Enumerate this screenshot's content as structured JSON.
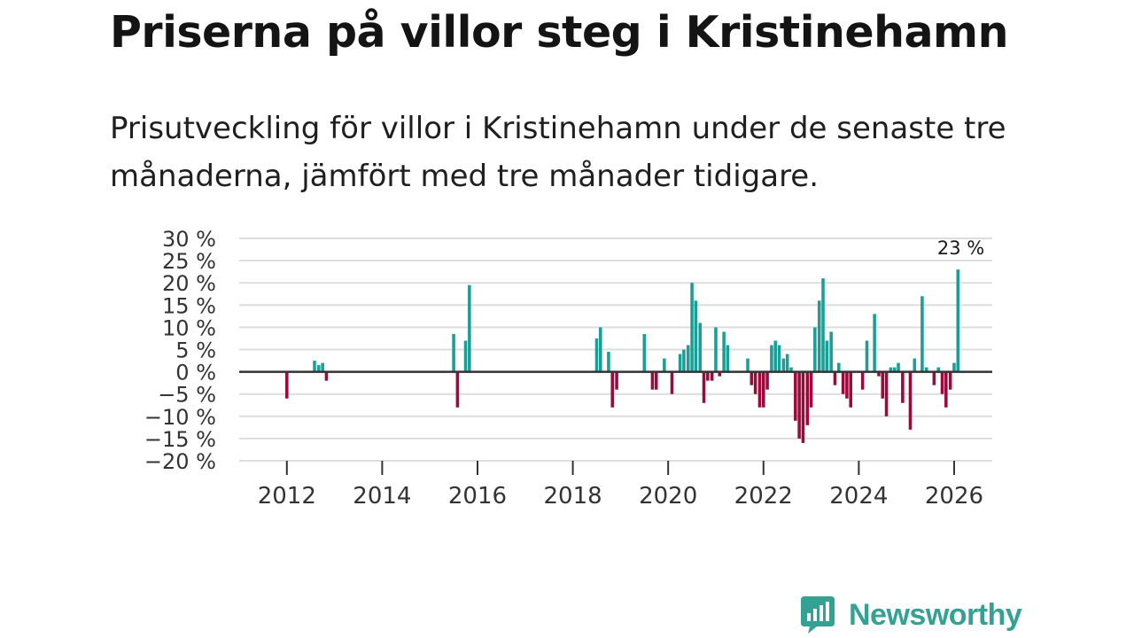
{
  "title": "Priserna på villor steg i Kristinehamn",
  "subtitle": "Prisutveckling för villor i Kristinehamn under de senaste tre månaderna, jämfört med tre månader tidigare.",
  "brand": {
    "name": "Newsworthy",
    "logo_icon": "bar-chart-speech-bubble-icon",
    "color": "#35a193"
  },
  "colors": {
    "positive": "#1a9e96",
    "negative": "#9c0a3c",
    "grid": "#dddddd",
    "zero_line": "#333333"
  },
  "chart_data": {
    "type": "bar",
    "title": "Priserna på villor steg i Kristinehamn",
    "xlabel": "",
    "ylabel": "",
    "ylim": [
      -20,
      30
    ],
    "xlim": [
      2011.0,
      2026.8
    ],
    "y_ticks": [
      {
        "value": 30,
        "label": "30 %"
      },
      {
        "value": 25,
        "label": "25 %"
      },
      {
        "value": 20,
        "label": "20 %"
      },
      {
        "value": 15,
        "label": "15 %"
      },
      {
        "value": 10,
        "label": "10 %"
      },
      {
        "value": 5,
        "label": "5 %"
      },
      {
        "value": 0,
        "label": "0 %"
      },
      {
        "value": -5,
        "label": "−5 %"
      },
      {
        "value": -10,
        "label": "−10 %"
      },
      {
        "value": -15,
        "label": "−15 %"
      },
      {
        "value": -20,
        "label": "−20 %"
      }
    ],
    "x_ticks": [
      {
        "value": 2012,
        "label": "2012"
      },
      {
        "value": 2014,
        "label": "2014"
      },
      {
        "value": 2016,
        "label": "2016"
      },
      {
        "value": 2018,
        "label": "2018"
      },
      {
        "value": 2020,
        "label": "2020"
      },
      {
        "value": 2022,
        "label": "2022"
      },
      {
        "value": 2024,
        "label": "2024"
      },
      {
        "value": 2026,
        "label": "2026"
      }
    ],
    "annotation": {
      "x": 2026.08,
      "value": 23,
      "label": "23 %"
    },
    "bar_width_years": 0.066,
    "series": [
      {
        "name": "Prisutveckling",
        "points": [
          {
            "x": 2012.0,
            "y": -6
          },
          {
            "x": 2012.58,
            "y": 2.5
          },
          {
            "x": 2012.67,
            "y": 1.5
          },
          {
            "x": 2012.75,
            "y": 2
          },
          {
            "x": 2012.83,
            "y": -2
          },
          {
            "x": 2015.5,
            "y": 8.5
          },
          {
            "x": 2015.58,
            "y": -8
          },
          {
            "x": 2015.75,
            "y": 7
          },
          {
            "x": 2015.83,
            "y": 19.5
          },
          {
            "x": 2018.5,
            "y": 7.5
          },
          {
            "x": 2018.58,
            "y": 10
          },
          {
            "x": 2018.75,
            "y": 4.5
          },
          {
            "x": 2018.83,
            "y": -8
          },
          {
            "x": 2018.92,
            "y": -4
          },
          {
            "x": 2019.5,
            "y": 8.5
          },
          {
            "x": 2019.67,
            "y": -4
          },
          {
            "x": 2019.75,
            "y": -4
          },
          {
            "x": 2019.92,
            "y": 3
          },
          {
            "x": 2020.08,
            "y": -5
          },
          {
            "x": 2020.25,
            "y": 4
          },
          {
            "x": 2020.33,
            "y": 5
          },
          {
            "x": 2020.42,
            "y": 6
          },
          {
            "x": 2020.5,
            "y": 20
          },
          {
            "x": 2020.58,
            "y": 16
          },
          {
            "x": 2020.67,
            "y": 11
          },
          {
            "x": 2020.75,
            "y": -7
          },
          {
            "x": 2020.83,
            "y": -2
          },
          {
            "x": 2020.92,
            "y": -2
          },
          {
            "x": 2021.0,
            "y": 10
          },
          {
            "x": 2021.08,
            "y": -1
          },
          {
            "x": 2021.17,
            "y": 9
          },
          {
            "x": 2021.25,
            "y": 6
          },
          {
            "x": 2021.67,
            "y": 3
          },
          {
            "x": 2021.75,
            "y": -3
          },
          {
            "x": 2021.83,
            "y": -5
          },
          {
            "x": 2021.92,
            "y": -8
          },
          {
            "x": 2022.0,
            "y": -8
          },
          {
            "x": 2022.08,
            "y": -4
          },
          {
            "x": 2022.17,
            "y": 6
          },
          {
            "x": 2022.25,
            "y": 7
          },
          {
            "x": 2022.33,
            "y": 6
          },
          {
            "x": 2022.42,
            "y": 3
          },
          {
            "x": 2022.5,
            "y": 4
          },
          {
            "x": 2022.58,
            "y": 1
          },
          {
            "x": 2022.67,
            "y": -11
          },
          {
            "x": 2022.75,
            "y": -15
          },
          {
            "x": 2022.83,
            "y": -16
          },
          {
            "x": 2022.92,
            "y": -12
          },
          {
            "x": 2023.0,
            "y": -8
          },
          {
            "x": 2023.08,
            "y": 10
          },
          {
            "x": 2023.17,
            "y": 16
          },
          {
            "x": 2023.25,
            "y": 21
          },
          {
            "x": 2023.33,
            "y": 7
          },
          {
            "x": 2023.42,
            "y": 9
          },
          {
            "x": 2023.5,
            "y": -3
          },
          {
            "x": 2023.58,
            "y": 2
          },
          {
            "x": 2023.67,
            "y": -5
          },
          {
            "x": 2023.75,
            "y": -6
          },
          {
            "x": 2023.83,
            "y": -8
          },
          {
            "x": 2024.08,
            "y": -4
          },
          {
            "x": 2024.17,
            "y": 7
          },
          {
            "x": 2024.33,
            "y": 13
          },
          {
            "x": 2024.42,
            "y": -1
          },
          {
            "x": 2024.5,
            "y": -6
          },
          {
            "x": 2024.58,
            "y": -10
          },
          {
            "x": 2024.67,
            "y": 1
          },
          {
            "x": 2024.75,
            "y": 1
          },
          {
            "x": 2024.83,
            "y": 2
          },
          {
            "x": 2024.92,
            "y": -7
          },
          {
            "x": 2025.08,
            "y": -13
          },
          {
            "x": 2025.17,
            "y": 3
          },
          {
            "x": 2025.33,
            "y": 17
          },
          {
            "x": 2025.42,
            "y": 1
          },
          {
            "x": 2025.58,
            "y": -3
          },
          {
            "x": 2025.67,
            "y": 1
          },
          {
            "x": 2025.75,
            "y": -5
          },
          {
            "x": 2025.83,
            "y": -8
          },
          {
            "x": 2025.92,
            "y": -4
          },
          {
            "x": 2026.0,
            "y": 2
          },
          {
            "x": 2026.08,
            "y": 23
          }
        ]
      }
    ]
  }
}
